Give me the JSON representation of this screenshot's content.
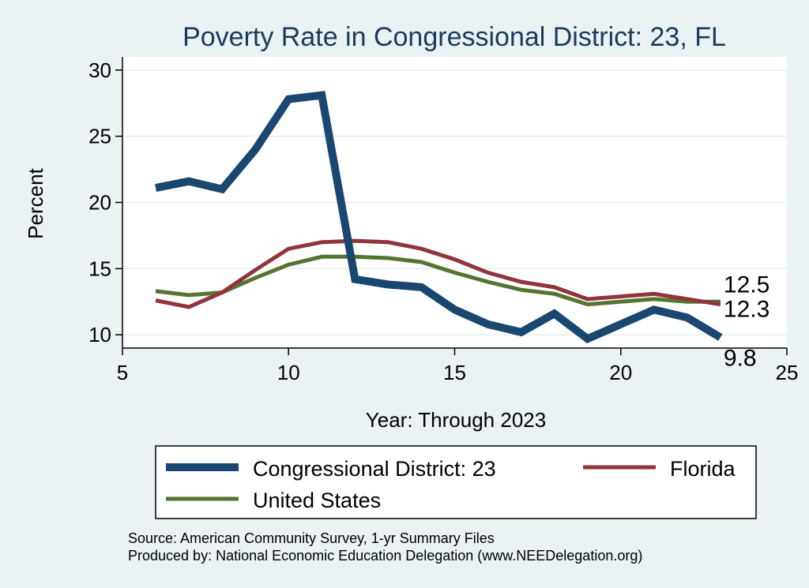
{
  "chart_data": {
    "type": "line",
    "title": "Poverty Rate in Congressional District:  23, FL",
    "xlabel": "Year: Through 2023",
    "ylabel": "Percent",
    "xlim": [
      5,
      25
    ],
    "ylim": [
      9,
      31
    ],
    "xticks": [
      "5",
      "10",
      "15",
      "20",
      "25"
    ],
    "yticks": [
      "10",
      "15",
      "20",
      "25",
      "30"
    ],
    "grid": true,
    "series": [
      {
        "name": "Congressional District:  23",
        "color": "#1a476f",
        "x": [
          6,
          7,
          8,
          9,
          10,
          11,
          12,
          13,
          14,
          15,
          16,
          17,
          18,
          19,
          20,
          21,
          22,
          23
        ],
        "values": [
          21.1,
          21.6,
          21.0,
          24.0,
          27.8,
          28.1,
          14.2,
          13.8,
          13.6,
          11.9,
          10.8,
          10.2,
          11.6,
          9.7,
          10.8,
          11.9,
          11.3,
          9.8
        ],
        "end_label": "9.8"
      },
      {
        "name": "Florida",
        "color": "#90353b",
        "x": [
          6,
          7,
          8,
          9,
          10,
          11,
          12,
          13,
          14,
          15,
          16,
          17,
          18,
          19,
          20,
          21,
          22,
          23
        ],
        "values": [
          12.6,
          12.1,
          13.2,
          14.9,
          16.5,
          17.0,
          17.1,
          17.0,
          16.5,
          15.7,
          14.7,
          14.0,
          13.6,
          12.7,
          12.9,
          13.1,
          12.7,
          12.3
        ],
        "end_label": "12.3"
      },
      {
        "name": "United States",
        "color": "#55752f",
        "x": [
          6,
          7,
          8,
          9,
          10,
          11,
          12,
          13,
          14,
          15,
          16,
          17,
          18,
          19,
          20,
          21,
          22,
          23
        ],
        "values": [
          13.3,
          13.0,
          13.2,
          14.3,
          15.3,
          15.9,
          15.9,
          15.8,
          15.5,
          14.7,
          14.0,
          13.4,
          13.1,
          12.3,
          12.5,
          12.7,
          12.5,
          12.5
        ],
        "end_label": "12.5"
      }
    ],
    "legend": {
      "entries": [
        "Congressional District:  23",
        "Florida",
        "United States"
      ]
    },
    "notes": [
      "Source: American Community Survey, 1-yr Summary Files",
      "Produced by: National Economic Education Delegation (www.NEEDelegation.org)"
    ]
  }
}
